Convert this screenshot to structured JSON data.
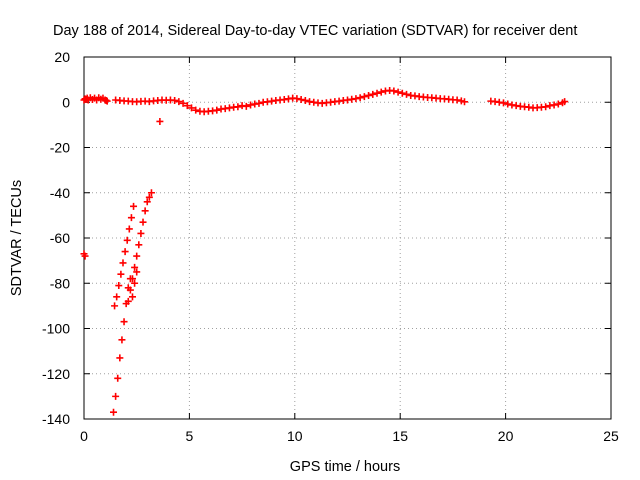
{
  "chart_data": {
    "type": "scatter",
    "title": "Day 188 of 2014, Sidereal Day-to-day VTEC variation (SDTVAR) for receiver dent",
    "xlabel": "GPS time / hours",
    "ylabel": "SDTVAR / TECUs",
    "xlim": [
      0,
      25
    ],
    "ylim": [
      -140,
      20
    ],
    "x_ticks": [
      0,
      5,
      10,
      15,
      20,
      25
    ],
    "y_ticks": [
      -140,
      -120,
      -100,
      -80,
      -60,
      -40,
      -20,
      0,
      20
    ],
    "grid": true,
    "legend": "none",
    "marker": "plus",
    "color": "#ff0000",
    "series": [
      {
        "x": [
          0.0,
          0.05,
          0.1,
          0.15,
          0.2,
          0.3,
          0.4,
          0.5,
          0.6,
          0.7,
          0.8,
          0.9,
          1.0,
          1.05,
          1.1,
          1.5,
          1.7,
          1.9,
          2.1,
          2.3,
          2.5,
          2.7,
          2.9,
          3.1,
          3.3,
          3.5,
          3.7,
          3.9,
          4.1,
          4.3,
          4.5,
          4.7,
          4.9,
          5.1,
          5.3,
          5.5,
          5.7,
          5.9,
          6.1,
          6.3,
          6.5,
          6.7,
          6.9,
          7.1,
          7.3,
          7.5,
          7.7,
          7.9,
          8.1,
          8.3,
          8.5,
          8.7,
          8.9,
          9.1,
          9.3,
          9.5,
          9.7,
          9.9,
          10.1,
          10.3,
          10.5,
          10.7,
          10.9,
          11.1,
          11.3,
          11.5,
          11.7,
          11.9,
          12.1,
          12.3,
          12.5,
          12.7,
          12.9,
          13.1,
          13.3,
          13.5,
          13.7,
          13.9,
          14.1,
          14.3,
          14.5,
          14.7,
          14.9,
          15.1,
          15.3,
          15.5,
          15.7,
          15.9,
          16.1,
          16.3,
          16.5,
          16.7,
          16.9,
          17.1,
          17.3,
          17.5,
          17.7,
          17.9,
          18.05,
          19.3,
          19.5,
          19.7,
          19.9,
          20.1,
          20.3,
          20.5,
          20.7,
          20.9,
          21.1,
          21.3,
          21.5,
          21.7,
          21.9,
          22.1,
          22.3,
          22.5,
          22.7,
          22.8,
          3.6,
          0.0,
          0.05,
          1.4,
          1.5,
          1.6,
          1.7,
          1.8,
          1.9,
          2.0,
          2.1,
          2.2,
          2.3,
          2.4,
          2.5,
          1.45,
          1.55,
          1.65,
          1.75,
          1.85,
          1.95,
          2.05,
          2.15,
          2.25,
          2.35,
          2.1,
          2.2,
          2.3,
          2.4,
          2.5,
          2.6,
          2.7,
          2.8,
          2.9,
          3.0,
          3.1,
          3.2
        ],
        "y": [
          1.0,
          1.5,
          1.2,
          1.8,
          1.0,
          2.0,
          1.2,
          1.8,
          1.0,
          2.0,
          1.3,
          1.8,
          1.0,
          0.8,
          0.5,
          1.0,
          0.8,
          0.6,
          0.5,
          0.3,
          0.2,
          0.4,
          0.5,
          0.3,
          0.6,
          0.8,
          1.0,
          0.9,
          1.0,
          0.8,
          0.3,
          -0.5,
          -1.5,
          -2.5,
          -3.5,
          -4.0,
          -4.2,
          -4.0,
          -3.8,
          -3.5,
          -3.0,
          -2.8,
          -2.5,
          -2.2,
          -2.0,
          -1.5,
          -1.8,
          -1.2,
          -0.8,
          -0.5,
          0.0,
          0.2,
          0.5,
          0.8,
          1.0,
          1.2,
          1.5,
          1.8,
          1.6,
          1.2,
          0.8,
          0.3,
          0.0,
          -0.3,
          -0.5,
          -0.2,
          0.0,
          0.3,
          0.5,
          0.8,
          1.0,
          1.3,
          1.6,
          2.0,
          2.5,
          3.0,
          3.5,
          4.0,
          4.5,
          5.0,
          5.2,
          5.0,
          4.5,
          4.0,
          3.5,
          3.0,
          2.8,
          2.5,
          2.3,
          2.1,
          2.0,
          1.8,
          1.6,
          1.5,
          1.3,
          1.1,
          1.0,
          0.6,
          0.2,
          0.5,
          0.3,
          0.0,
          -0.3,
          -0.8,
          -1.2,
          -1.5,
          -1.8,
          -2.0,
          -2.2,
          -2.5,
          -2.4,
          -2.2,
          -2.0,
          -1.5,
          -1.2,
          -0.8,
          -0.2,
          0.3,
          -8.5,
          -67.0,
          -68.0,
          -137,
          -130,
          -122,
          -113,
          -105,
          -97,
          -89,
          -82,
          -78,
          -86,
          -80,
          -75,
          -90,
          -86,
          -81,
          -76,
          -71,
          -66,
          -61,
          -56,
          -51,
          -46,
          -88,
          -83,
          -78,
          -73,
          -68,
          -63,
          -58,
          -53,
          -48,
          -44,
          -42,
          -40
        ]
      }
    ]
  }
}
